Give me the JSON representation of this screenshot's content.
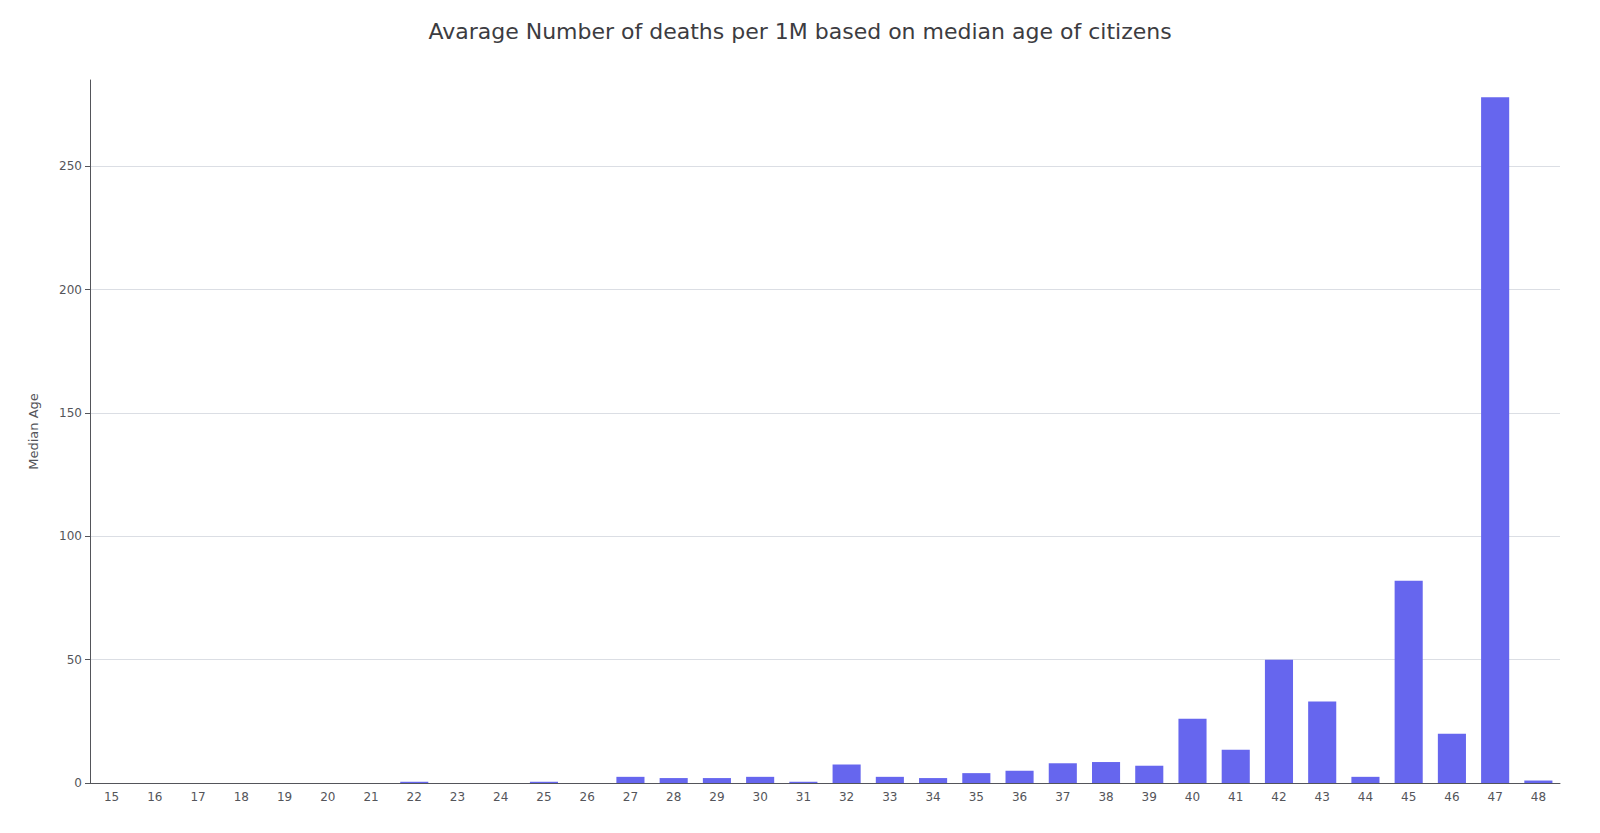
{
  "chart_data": {
    "type": "bar",
    "title": "Avarage Number of deaths per 1M based on median age of citizens",
    "ylabel": "Median Age",
    "categories": [
      15,
      16,
      17,
      18,
      19,
      20,
      21,
      22,
      23,
      24,
      25,
      26,
      27,
      28,
      29,
      30,
      31,
      32,
      33,
      34,
      35,
      36,
      37,
      38,
      39,
      40,
      41,
      42,
      43,
      44,
      45,
      46,
      47,
      48
    ],
    "values": [
      0,
      0,
      0,
      0,
      0,
      0,
      0,
      0.5,
      0,
      0,
      0.5,
      0,
      2.5,
      2.0,
      2.0,
      2.5,
      0.5,
      7.5,
      2.5,
      2.0,
      4.0,
      5.0,
      8.0,
      8.5,
      7.0,
      26.0,
      13.5,
      50.0,
      33.0,
      2.5,
      82.0,
      20.0,
      278.0,
      1.0
    ],
    "color": "#6666ee",
    "ylim": [
      0,
      285
    ],
    "yticks": [
      0,
      50,
      100,
      150,
      200,
      250
    ],
    "grid": true
  }
}
